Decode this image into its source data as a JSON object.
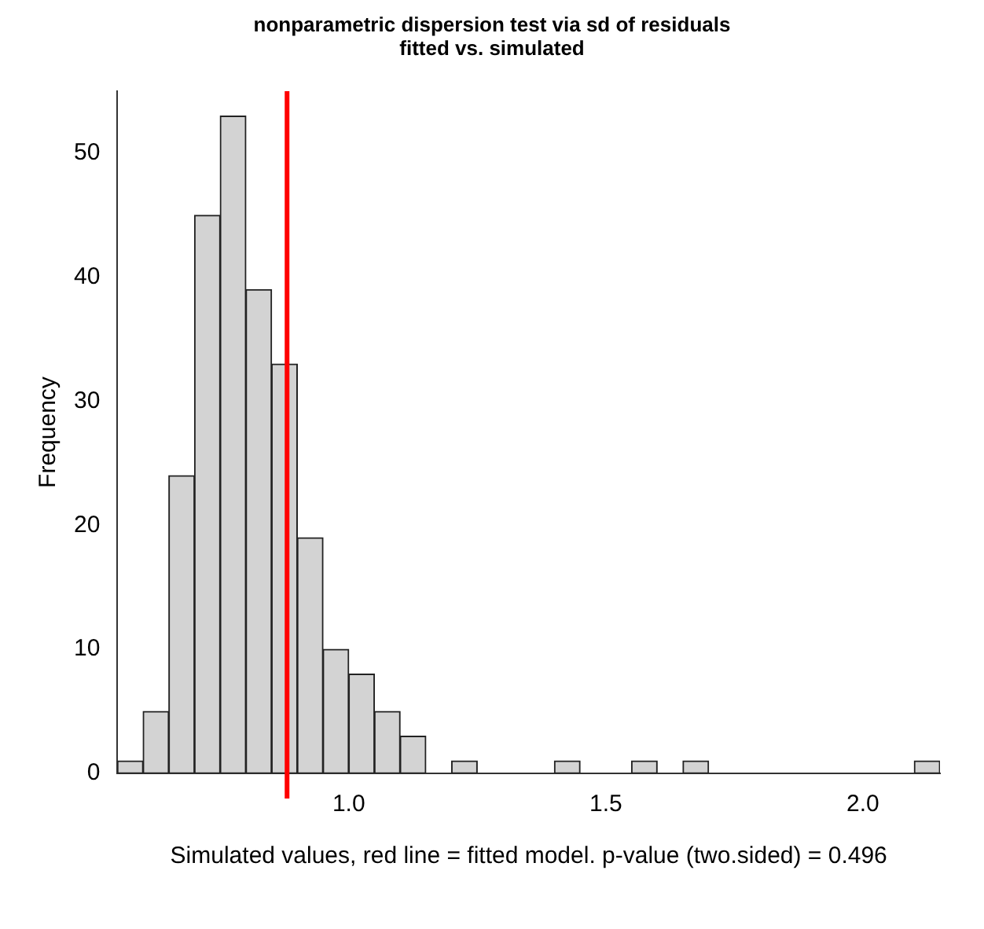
{
  "chart_data": {
    "type": "histogram",
    "title": "nonparametric dispersion test via sd of residuals fitted vs. simulated",
    "xlabel": "Simulated values, red line = fitted model. p-value (two.sided) = 0.496",
    "ylabel": "Frequency",
    "bins": [
      0.55,
      0.6,
      0.65,
      0.7,
      0.75,
      0.8,
      0.85,
      0.9,
      0.95,
      1.0,
      1.05,
      1.1,
      1.15,
      1.2,
      1.25,
      1.3,
      1.35,
      1.4,
      1.45,
      1.5,
      1.55,
      1.6,
      1.65,
      1.7,
      1.75,
      1.8,
      1.85,
      1.9,
      1.95,
      2.0,
      2.05,
      2.1,
      2.15
    ],
    "values": [
      1,
      5,
      24,
      45,
      53,
      39,
      33,
      19,
      10,
      8,
      5,
      3,
      0,
      1,
      0,
      0,
      0,
      1,
      0,
      0,
      1,
      0,
      1,
      0,
      0,
      0,
      0,
      0,
      0,
      0,
      0,
      1
    ],
    "color": "#d3d3d3",
    "xlim": [
      0.55,
      2.15
    ],
    "xticks": [
      {
        "value": 1.0,
        "label": "1.0"
      },
      {
        "value": 1.5,
        "label": "1.5"
      },
      {
        "value": 2.0,
        "label": "2.0"
      }
    ],
    "ylim": [
      0,
      55
    ],
    "yticks": [
      0,
      10,
      20,
      30,
      40,
      50
    ],
    "grid": false,
    "legend": false,
    "ref_lines": [
      {
        "axis": "x",
        "value": 0.88,
        "label": null,
        "color": "#ff0000"
      }
    ]
  }
}
